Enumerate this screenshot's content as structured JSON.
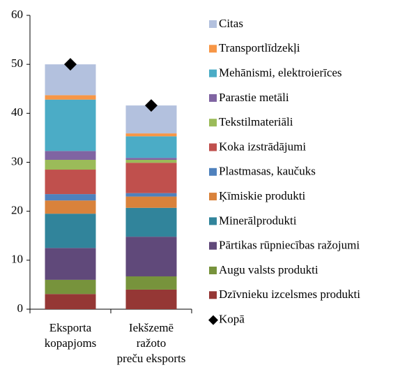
{
  "chart_data": {
    "type": "stacked_bar",
    "categories": [
      [
        "Eksporta",
        "kopapjoms"
      ],
      [
        "Iekšzemē",
        "ražoto",
        "preču eksports"
      ]
    ],
    "series": [
      {
        "name": "Dzīvnieku izcelsmes produkti",
        "color": "#953735",
        "values": [
          3.1,
          4.0
        ]
      },
      {
        "name": "Augu valsts produkti",
        "color": "#77933c",
        "values": [
          2.9,
          2.7
        ]
      },
      {
        "name": "Pārtikas rūpniecības ražojumi",
        "color": "#60497a",
        "values": [
          6.5,
          8.1
        ]
      },
      {
        "name": "Minerālprodukti",
        "color": "#31849b",
        "values": [
          7.0,
          5.9
        ]
      },
      {
        "name": "Ķīmiskie produkti",
        "color": "#d9823b",
        "values": [
          2.7,
          2.3
        ]
      },
      {
        "name": "Plastmasas, kaučuks",
        "color": "#4f81bd",
        "values": [
          1.3,
          0.7
        ]
      },
      {
        "name": "Koka izstrādājumi",
        "color": "#c0504d",
        "values": [
          5.0,
          6.2
        ]
      },
      {
        "name": "Tekstilmateriāli",
        "color": "#9bbb59",
        "values": [
          2.0,
          0.6
        ]
      },
      {
        "name": "Parastie metāli",
        "color": "#8064a2",
        "values": [
          1.8,
          0.4
        ]
      },
      {
        "name": "Mehānismi, elektroierīces",
        "color": "#4bacc6",
        "values": [
          10.5,
          4.4
        ]
      },
      {
        "name": "Transportlīdzekļi",
        "color": "#f79646",
        "values": [
          0.9,
          0.6
        ]
      },
      {
        "name": "Citas",
        "color": "#b3c1de",
        "values": [
          6.3,
          5.7
        ]
      }
    ],
    "totals": {
      "name": "Kopā",
      "color": "#000000",
      "values": [
        50.0,
        41.6
      ]
    },
    "ylim": [
      0,
      60
    ],
    "yticks": [
      0,
      10,
      20,
      30,
      40,
      50,
      60
    ],
    "grid": false
  }
}
